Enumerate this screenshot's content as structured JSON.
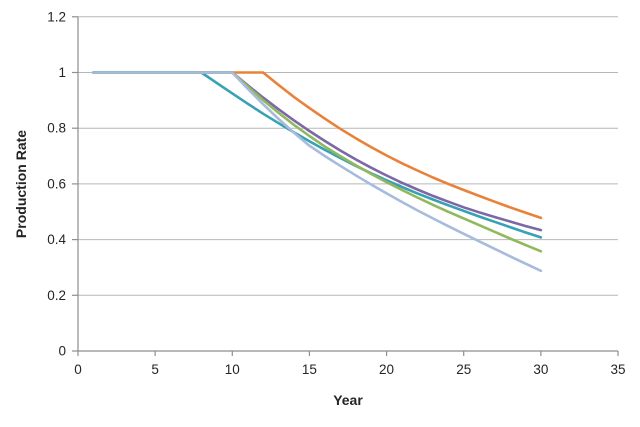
{
  "chart_data": {
    "type": "line",
    "title": "",
    "xlabel": "Year",
    "ylabel": "Production Rate",
    "xlim": [
      0,
      35
    ],
    "ylim": [
      0,
      1.2
    ],
    "grid": "horizontal",
    "legend": "none",
    "grid_color": "#b7b7b7",
    "axis_color": "#8e8e8e",
    "text_color": "#252525",
    "xticks": [
      {
        "value": 0,
        "label": "0"
      },
      {
        "value": 5,
        "label": "5"
      },
      {
        "value": 10,
        "label": "10"
      },
      {
        "value": 15,
        "label": "15"
      },
      {
        "value": 20,
        "label": "20"
      },
      {
        "value": 25,
        "label": "25"
      },
      {
        "value": 30,
        "label": "30"
      },
      {
        "value": 35,
        "label": "35"
      }
    ],
    "yticks": [
      {
        "value": 0,
        "label": "0"
      },
      {
        "value": 0.2,
        "label": "0.2"
      },
      {
        "value": 0.4,
        "label": "0.4"
      },
      {
        "value": 0.6,
        "label": "0.6"
      },
      {
        "value": 0.8,
        "label": "0.8"
      },
      {
        "value": 1,
        "label": "1"
      },
      {
        "value": 1.2,
        "label": "1.2"
      }
    ],
    "x": [
      1,
      2,
      3,
      4,
      5,
      6,
      7,
      8,
      9,
      10,
      11,
      12,
      13,
      14,
      15,
      16,
      17,
      18,
      19,
      20,
      21,
      22,
      23,
      24,
      25,
      26,
      27,
      28,
      29,
      30
    ],
    "series": [
      {
        "name": "orange-line",
        "color": "#e8823a",
        "plateau_end_year": 12,
        "values": [
          1,
          1,
          1,
          1,
          1,
          1,
          1,
          1,
          1,
          1,
          1,
          1,
          0.955,
          0.912,
          0.872,
          0.834,
          0.798,
          0.764,
          0.732,
          0.702,
          0.674,
          0.648,
          0.623,
          0.6,
          0.578,
          0.557,
          0.536,
          0.516,
          0.497,
          0.478
        ]
      },
      {
        "name": "purple-line",
        "color": "#7b68a5",
        "plateau_end_year": 10,
        "values": [
          1,
          1,
          1,
          1,
          1,
          1,
          1,
          1,
          1,
          1,
          0.954,
          0.91,
          0.868,
          0.828,
          0.79,
          0.754,
          0.72,
          0.688,
          0.658,
          0.63,
          0.604,
          0.58,
          0.557,
          0.536,
          0.516,
          0.498,
          0.481,
          0.465,
          0.449,
          0.434
        ]
      },
      {
        "name": "teal-line",
        "color": "#38a1b4",
        "plateau_end_year": 8,
        "values": [
          1,
          1,
          1,
          1,
          1,
          1,
          1,
          1,
          0.962,
          0.925,
          0.888,
          0.852,
          0.818,
          0.785,
          0.753,
          0.722,
          0.693,
          0.665,
          0.638,
          0.613,
          0.589,
          0.566,
          0.544,
          0.523,
          0.503,
          0.483,
          0.464,
          0.445,
          0.426,
          0.408
        ]
      },
      {
        "name": "green-line",
        "color": "#90b95d",
        "plateau_end_year": 10,
        "values": [
          1,
          1,
          1,
          1,
          1,
          1,
          1,
          1,
          1,
          1,
          0.95,
          0.901,
          0.855,
          0.812,
          0.772,
          0.734,
          0.7,
          0.667,
          0.636,
          0.606,
          0.578,
          0.551,
          0.525,
          0.5,
          0.476,
          0.452,
          0.428,
          0.404,
          0.381,
          0.358
        ]
      },
      {
        "name": "light-blue-line",
        "color": "#a6bbdd",
        "plateau_end_year": 10,
        "values": [
          1,
          1,
          1,
          1,
          1,
          1,
          1,
          1,
          1,
          1,
          0.942,
          0.886,
          0.833,
          0.784,
          0.737,
          0.7,
          0.665,
          0.631,
          0.598,
          0.566,
          0.535,
          0.505,
          0.476,
          0.448,
          0.421,
          0.394,
          0.367,
          0.34,
          0.314,
          0.288
        ]
      }
    ]
  }
}
